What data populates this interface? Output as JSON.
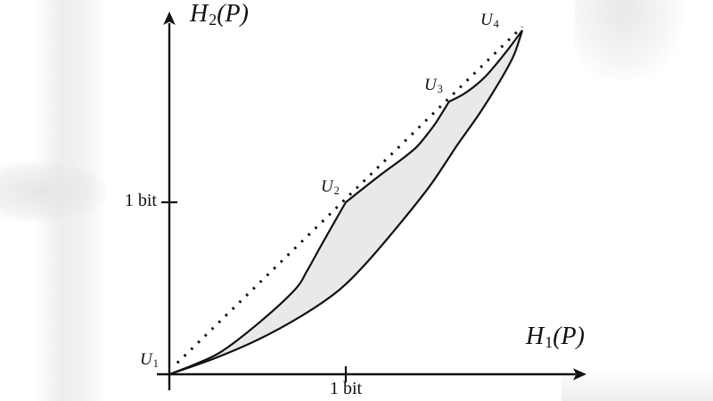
{
  "figure": {
    "y_axis": {
      "var": "H",
      "sub": "2",
      "arg": "(P)"
    },
    "x_axis": {
      "var": "H",
      "sub": "1",
      "arg": "(P)"
    },
    "point_labels": [
      {
        "var": "U",
        "sub": "1"
      },
      {
        "var": "U",
        "sub": "2"
      },
      {
        "var": "U",
        "sub": "3"
      },
      {
        "var": "U",
        "sub": "4"
      }
    ],
    "colors": {
      "ink": "#111111",
      "shade": "#e9e9e9",
      "background": "#ffffff"
    }
  },
  "chart_data": {
    "type": "line",
    "xlabel": "H1(P)",
    "ylabel": "H2(P)",
    "x_unit": "bits",
    "y_unit": "bits",
    "xlim": [
      0,
      2.3
    ],
    "ylim": [
      0,
      2.1
    ],
    "grid": false,
    "x_ticks": [
      {
        "value": 1,
        "label": "1 bit"
      }
    ],
    "y_ticks": [
      {
        "value": 1,
        "label": "1 bit"
      }
    ],
    "marked_points": [
      {
        "label": "U1",
        "x": 0,
        "y": 0
      },
      {
        "label": "U2",
        "x": 1,
        "y": 1
      },
      {
        "label": "U3",
        "x": 1.585,
        "y": 1.585
      },
      {
        "label": "U4",
        "x": 2,
        "y": 2
      }
    ],
    "series": [
      {
        "name": "diagonal",
        "style": "dotted",
        "points": [
          [
            0.045,
            0.045
          ],
          [
            2.0,
            2.0
          ]
        ]
      },
      {
        "name": "upper-bound",
        "style": "solid",
        "segments": [
          [
            [
              0,
              0
            ],
            [
              0.15,
              0.06
            ],
            [
              0.3,
              0.135
            ],
            [
              0.52,
              0.31
            ],
            [
              0.71,
              0.49
            ],
            [
              0.78,
              0.6
            ],
            [
              0.85,
              0.73
            ],
            [
              0.944,
              0.9
            ],
            [
              1,
              1
            ]
          ],
          [
            [
              1,
              1
            ],
            [
              1.11,
              1.09
            ],
            [
              1.21,
              1.17
            ],
            [
              1.31,
              1.245
            ],
            [
              1.4,
              1.32
            ],
            [
              1.465,
              1.4
            ],
            [
              1.515,
              1.47
            ],
            [
              1.585,
              1.585
            ]
          ],
          [
            [
              1.585,
              1.585
            ],
            [
              1.66,
              1.625
            ],
            [
              1.73,
              1.675
            ],
            [
              1.79,
              1.73
            ],
            [
              1.85,
              1.8
            ],
            [
              1.92,
              1.89
            ],
            [
              2,
              2
            ]
          ]
        ]
      },
      {
        "name": "lower-bound",
        "style": "solid",
        "points": [
          [
            0,
            0
          ],
          [
            0.25,
            0.09
          ],
          [
            0.5,
            0.2
          ],
          [
            0.75,
            0.34
          ],
          [
            0.95,
            0.48
          ],
          [
            1.11,
            0.64
          ],
          [
            1.31,
            0.88
          ],
          [
            1.48,
            1.1
          ],
          [
            1.63,
            1.33
          ],
          [
            1.76,
            1.52
          ],
          [
            1.87,
            1.7
          ],
          [
            1.95,
            1.85
          ],
          [
            2,
            2
          ]
        ]
      }
    ],
    "shaded_region": {
      "between": [
        "upper-bound",
        "lower-bound"
      ],
      "color": "#e9e9e9"
    }
  }
}
